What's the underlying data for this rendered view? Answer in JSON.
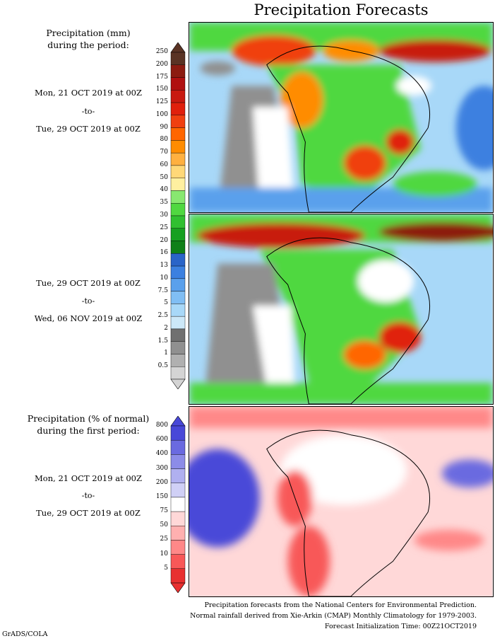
{
  "title": "Precipitation Forecasts",
  "panel1": {
    "legend_title_line1": "Precipitation (mm)",
    "legend_title_line2": "during the period:",
    "start": "Mon, 21 OCT 2019 at 00Z",
    "to": "-to-",
    "end": "Tue, 29 OCT 2019 at 00Z"
  },
  "panel2": {
    "start": "Tue, 29 OCT 2019 at 00Z",
    "to": "-to-",
    "end": "Wed, 06 NOV 2019 at 00Z"
  },
  "panel3": {
    "legend_title_line1": "Precipitation (% of normal)",
    "legend_title_line2": "during the first period:",
    "start": "Mon, 21 OCT 2019 at 00Z",
    "to": "-to-",
    "end": "Tue, 29 OCT 2019 at 00Z"
  },
  "precip_scale": {
    "labels": [
      "250",
      "200",
      "175",
      "150",
      "125",
      "100",
      "90",
      "80",
      "70",
      "60",
      "50",
      "40",
      "35",
      "30",
      "25",
      "20",
      "16",
      "13",
      "10",
      "7.5",
      "5",
      "2.5",
      "2",
      "1.5",
      "1",
      "0.5"
    ],
    "colors": [
      "#5a3324",
      "#8c1b10",
      "#b01010",
      "#c81a10",
      "#e0200c",
      "#f04010",
      "#ff6600",
      "#ff8c00",
      "#ffb040",
      "#ffd878",
      "#fff0a0",
      "#88e870",
      "#50d840",
      "#30c030",
      "#16a020",
      "#108018",
      "#2a64c8",
      "#3c80e0",
      "#5aa0ec",
      "#80bef4",
      "#a8d8f8",
      "#cce8f8",
      "#707070",
      "#909090",
      "#b0b0b0",
      "#d4d4d4"
    ]
  },
  "pct_scale": {
    "labels": [
      "800",
      "600",
      "400",
      "300",
      "200",
      "150",
      "75",
      "50",
      "25",
      "10",
      "5"
    ],
    "colors": [
      "#4848d8",
      "#6a6ae0",
      "#8c8ce8",
      "#b0b0f0",
      "#d0d0f6",
      "#ffffff",
      "#ffd8d8",
      "#ffb0b0",
      "#ff8888",
      "#f85858",
      "#e83030"
    ]
  },
  "footer": {
    "line1": "Precipitation forecasts from the National Centers for Environmental Prediction.",
    "line2": "Normal rainfall derived from Xie-Arkin (CMAP) Monthly Climatology for 1979-2003.",
    "line3": "Forecast Initialization Time: 00Z21OCT2019"
  },
  "credit": "GrADS/COLA"
}
